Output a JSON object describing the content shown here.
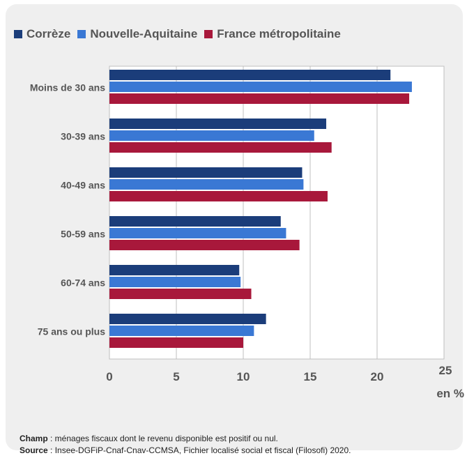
{
  "chart_data": {
    "type": "bar",
    "orientation": "horizontal",
    "categories": [
      "Moins de 30 ans",
      "30-39 ans",
      "40-49 ans",
      "50-59 ans",
      "60-74 ans",
      "75 ans ou plus"
    ],
    "series": [
      {
        "name": "Corrèze",
        "color": "#1b3d7a",
        "values": [
          21.0,
          16.2,
          14.4,
          12.8,
          9.7,
          11.7
        ]
      },
      {
        "name": "Nouvelle-Aquitaine",
        "color": "#3a78d4",
        "values": [
          22.6,
          15.3,
          14.5,
          13.2,
          9.8,
          10.8
        ]
      },
      {
        "name": "France métropolitaine",
        "color": "#a8183b",
        "values": [
          22.4,
          16.6,
          16.3,
          14.2,
          10.6,
          10.0
        ]
      }
    ],
    "xlim": [
      0,
      25
    ],
    "xticks": [
      0,
      5,
      10,
      15,
      20,
      25
    ],
    "xunit": "en %",
    "grid": "vertical",
    "legend_position": "top-left"
  },
  "notes": {
    "champ_label": "Champ",
    "champ_text": " : ménages fiscaux dont le revenu disponible est positif ou nul.",
    "source_label": "Source",
    "source_text": " : Insee-DGFiP-Cnaf-Cnav-CCMSA, Fichier localisé social et fiscal (Filosofi) 2020."
  }
}
